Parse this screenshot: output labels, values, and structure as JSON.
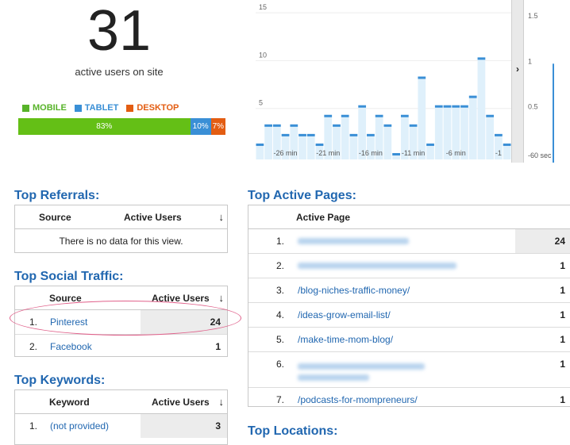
{
  "summary": {
    "count": "31",
    "label": "active users on site"
  },
  "devices": {
    "legend": [
      {
        "label": "MOBILE",
        "color": "#57b329"
      },
      {
        "label": "TABLET",
        "color": "#3a8fd6"
      },
      {
        "label": "DESKTOP",
        "color": "#e35d12"
      }
    ],
    "bar": [
      {
        "label": "83%",
        "value": 83,
        "color": "#64bf16"
      },
      {
        "label": "10%",
        "value": 10,
        "color": "#3a8fd6"
      },
      {
        "label": "7%",
        "value": 7,
        "color": "#e35d12"
      }
    ]
  },
  "chart_data": [
    {
      "type": "bar",
      "title": "",
      "y_ticks": [
        "15",
        "10",
        "5"
      ],
      "x_ticks": [
        "-26 min",
        "-21 min",
        "-16 min",
        "-11 min",
        "-6 min",
        "-1"
      ],
      "ylim": [
        0,
        16
      ],
      "x": [
        -29,
        -28,
        -27,
        -26,
        -25,
        -24,
        -23,
        -22,
        -21,
        -20,
        -19,
        -18,
        -17,
        -16,
        -15,
        -14,
        -13,
        -12,
        -11,
        -10,
        -9,
        -8,
        -7,
        -6,
        -5,
        -4,
        -3,
        -2,
        -1,
        0
      ],
      "values": [
        1,
        3,
        3,
        2,
        3,
        2,
        2,
        1,
        4,
        3,
        4,
        2,
        5,
        2,
        4,
        3,
        0,
        4,
        3,
        8,
        1,
        5,
        5,
        5,
        5,
        6,
        10,
        4,
        2,
        1
      ],
      "color": "#3a8fd6",
      "fill": "#dff0fb"
    },
    {
      "type": "bar",
      "title": "",
      "y_ticks": [
        "1.5",
        "1",
        "0.5"
      ],
      "x_ticks": [
        "-60 sec"
      ],
      "ylim": [
        0,
        1.7
      ],
      "values": [
        1
      ],
      "color": "#3a8fd6"
    }
  ],
  "referrals": {
    "title": "Top Referrals:",
    "col_source": "Source",
    "col_users": "Active Users",
    "empty": "There is no data for this view."
  },
  "social": {
    "title": "Top Social Traffic:",
    "col_source": "Source",
    "col_users": "Active Users",
    "rows": [
      {
        "rank": "1.",
        "name": "Pinterest",
        "value": "24"
      },
      {
        "rank": "2.",
        "name": "Facebook",
        "value": "1"
      }
    ]
  },
  "keywords": {
    "title": "Top Keywords:",
    "col_keyword": "Keyword",
    "col_users": "Active Users",
    "rows": [
      {
        "rank": "1.",
        "name": "(not provided)",
        "value": "3"
      }
    ]
  },
  "pages": {
    "title": "Top Active Pages:",
    "col_page": "Active Page",
    "rows": [
      {
        "rank": "1.",
        "page": "",
        "value": "24"
      },
      {
        "rank": "2.",
        "page": "",
        "value": "1"
      },
      {
        "rank": "3.",
        "page": "/blog-niches-traffic-money/",
        "value": "1"
      },
      {
        "rank": "4.",
        "page": "/ideas-grow-email-list/",
        "value": "1"
      },
      {
        "rank": "5.",
        "page": "/make-time-mom-blog/",
        "value": "1"
      },
      {
        "rank": "6.",
        "page": "",
        "value": "1"
      },
      {
        "rank": "7.",
        "page": "/podcasts-for-mompreneurs/",
        "value": "1"
      }
    ]
  },
  "locations": {
    "title": "Top Locations:"
  }
}
